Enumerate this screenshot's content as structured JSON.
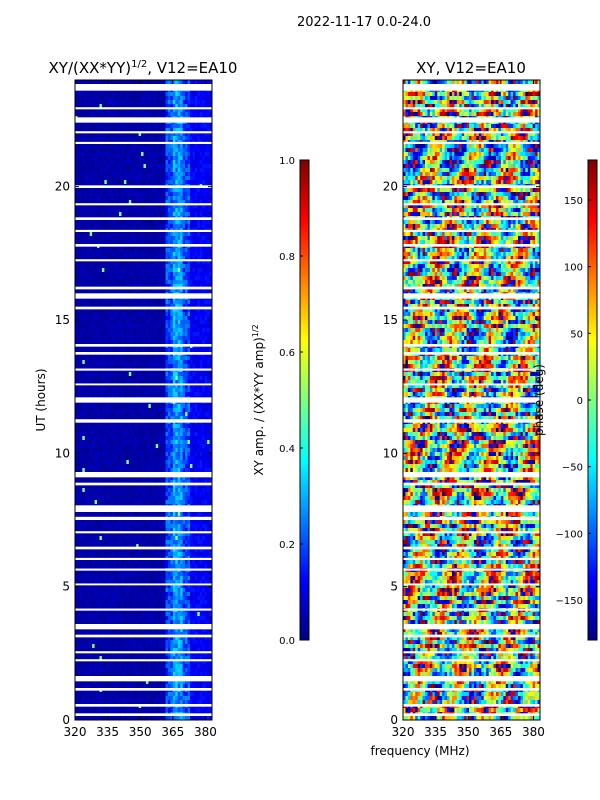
{
  "suptitle": "2022-11-17 0.0-24.0",
  "colors": {
    "jet": [
      "#00007f",
      "#0000ff",
      "#007fff",
      "#00ffff",
      "#7fff7f",
      "#ffff00",
      "#ff7f00",
      "#ff0000",
      "#7f0000"
    ],
    "gap": "#ffffff"
  },
  "chart_data": [
    {
      "type": "heatmap",
      "title_main": "XY/(XX*YY)",
      "title_exp": "1/2",
      "title_suffix": ", V12=EA10",
      "ylabel": "UT (hours)",
      "xlim": [
        320,
        383
      ],
      "ylim": [
        0,
        24
      ],
      "xticks": [
        320,
        335,
        350,
        365,
        380
      ],
      "yticks": [
        0,
        5,
        10,
        15,
        20
      ],
      "colorbar": {
        "label_main": "XY amp. / (XX*YY amp)",
        "label_exp": "1/2",
        "range": [
          0.0,
          1.0
        ],
        "ticks": [
          "0.0",
          "0.2",
          "0.4",
          "0.6",
          "0.8",
          "1.0"
        ]
      }
    },
    {
      "type": "heatmap",
      "title_main": "XY, V12=EA10",
      "title_exp": "",
      "title_suffix": "",
      "ylabel": "",
      "xlim": [
        320,
        383
      ],
      "ylim": [
        0,
        24
      ],
      "xticks": [
        320,
        335,
        350,
        365,
        380
      ],
      "yticks": [
        0,
        5,
        10,
        15,
        20
      ],
      "colorbar": {
        "label_main": "phase (deg)",
        "label_exp": "",
        "range": [
          -180,
          180
        ],
        "ticks": [
          "−150",
          "−100",
          "−50",
          "0",
          "50",
          "100",
          "150"
        ]
      }
    }
  ],
  "xlabel": "frequency (MHz)",
  "flagged_ut_hours": [
    [
      0.15,
      0.25
    ],
    [
      0.5,
      0.6
    ],
    [
      1.1,
      1.2
    ],
    [
      1.45,
      1.65
    ],
    [
      2.2,
      2.28
    ],
    [
      2.5,
      2.58
    ],
    [
      3.1,
      3.2
    ],
    [
      3.4,
      3.6
    ],
    [
      4.1,
      4.18
    ],
    [
      5.05,
      5.12
    ],
    [
      5.6,
      5.68
    ],
    [
      6.0,
      6.08
    ],
    [
      6.4,
      6.5
    ],
    [
      7.0,
      7.08
    ],
    [
      7.5,
      7.62
    ],
    [
      7.8,
      8.05
    ],
    [
      8.8,
      8.9
    ],
    [
      9.1,
      9.3
    ],
    [
      11.15,
      11.28
    ],
    [
      11.9,
      12.1
    ],
    [
      12.55,
      12.62
    ],
    [
      13.1,
      13.18
    ],
    [
      13.7,
      13.8
    ],
    [
      14.0,
      14.1
    ],
    [
      15.4,
      15.5
    ],
    [
      15.8,
      16.0
    ],
    [
      16.15,
      16.25
    ],
    [
      17.2,
      17.28
    ],
    [
      17.75,
      17.85
    ],
    [
      18.3,
      18.38
    ],
    [
      18.75,
      18.85
    ],
    [
      19.3,
      19.38
    ],
    [
      19.95,
      20.05
    ],
    [
      21.6,
      21.68
    ],
    [
      22.0,
      22.08
    ],
    [
      22.4,
      22.6
    ],
    [
      22.9,
      22.98
    ],
    [
      23.6,
      23.85
    ]
  ]
}
